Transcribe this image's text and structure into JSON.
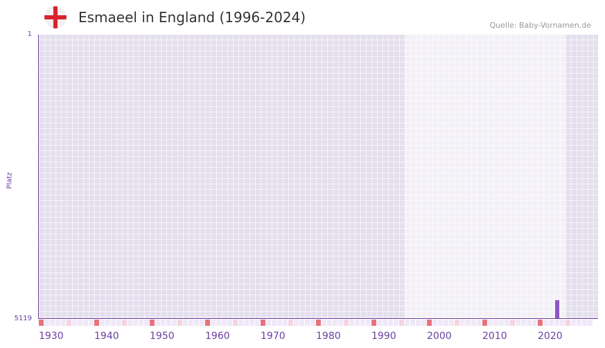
{
  "header": {
    "title": "Esmaeel in England (1996-2024)",
    "source": "Quelle: Baby-Vornamen.de",
    "flag_icon": "england-flag-icon"
  },
  "chart_data": {
    "type": "bar",
    "title": "Esmaeel in England (1996-2024)",
    "xlabel": "",
    "ylabel": "Platz",
    "xlim": [
      1930,
      2030
    ],
    "ylim": [
      5119,
      1
    ],
    "y_ticks": [
      "1",
      "5119"
    ],
    "x_ticks": [
      "1930",
      "1940",
      "1950",
      "1960",
      "1970",
      "1980",
      "1990",
      "2000",
      "2010",
      "2020"
    ],
    "highlight_range": [
      1996,
      2024
    ],
    "series": [
      {
        "name": "Platz",
        "points": [
          {
            "x": 2023,
            "y": 4800
          }
        ]
      }
    ],
    "colors": {
      "bar": "#8e55c9",
      "decade": "#e8737c",
      "half": "#f5d5df",
      "year": "#efe9f8",
      "axis": "#6a3ea1"
    }
  }
}
